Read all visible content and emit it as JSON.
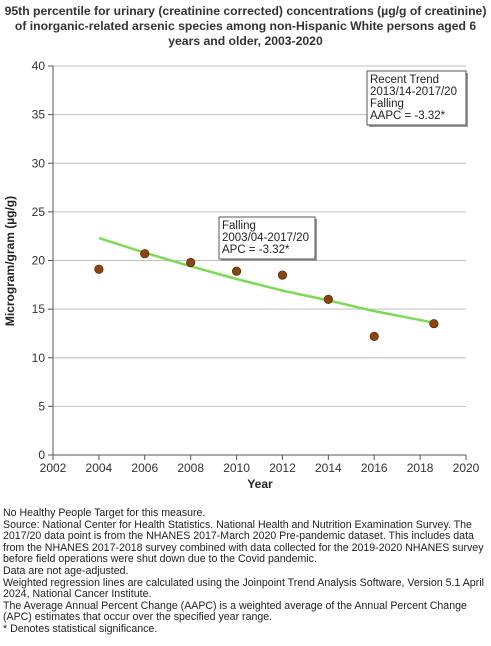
{
  "title_lines": [
    "95th percentile for urinary (creatinine corrected) concentrations (µg/g of creatinine)",
    "of inorganic-related arsenic species among non-Hispanic White persons aged 6",
    "years and older, 2003-2020"
  ],
  "chart_data": {
    "type": "scatter",
    "title": "95th percentile for urinary (creatinine corrected) concentrations (µg/g of creatinine) of inorganic-related arsenic species among non-Hispanic White persons aged 6 years and older, 2003-2020",
    "xlabel": "Year",
    "ylabel": "Microgram/gram (µg/g)",
    "xlim": [
      2002,
      2020
    ],
    "ylim": [
      0,
      40
    ],
    "xticks": [
      2002,
      2004,
      2006,
      2008,
      2010,
      2012,
      2014,
      2016,
      2018,
      2020
    ],
    "yticks": [
      0,
      5,
      10,
      15,
      20,
      25,
      30,
      35,
      40
    ],
    "grid": "horizontal",
    "points": {
      "x": [
        2004,
        2006,
        2008,
        2010,
        2012,
        2014,
        2016,
        2018.6
      ],
      "y": [
        19.1,
        20.7,
        19.8,
        18.9,
        18.5,
        16.0,
        12.2,
        13.5
      ]
    },
    "trend_line": {
      "x": [
        2004,
        2006,
        2008,
        2010,
        2012,
        2014,
        2016,
        2018.6
      ],
      "y": [
        22.3,
        20.8,
        19.4,
        18.1,
        16.9,
        15.9,
        14.8,
        13.6
      ]
    },
    "annotations": [
      {
        "lines": [
          "Falling",
          "2003/04-2017/20",
          "APC = -3.32*"
        ]
      },
      {
        "lines": [
          "Recent Trend",
          "2013/14-2017/20",
          "Falling",
          "AAPC = -3.32*"
        ]
      }
    ],
    "colors": {
      "point_fill": "#8b4513",
      "trend_line": "#7ed957",
      "grid": "#bfbfbf"
    }
  },
  "notes": [
    "No Healthy People Target for this measure.",
    "Source: National Center for Health Statistics. National Health and Nutrition Examination Survey. The 2017/20 data point is from the NHANES 2017-March 2020 Pre-pandemic dataset. This includes data from the NHANES 2017-2018 survey combined with data collected for the 2019-2020 NHANES survey before field operations were shut down due to the Covid pandemic.",
    "Data are not age-adjusted.",
    "Weighted regression lines are calculated using the Joinpoint Trend Analysis Software, Version 5.1 April 2024, National Cancer Institute.",
    "The Average Annual Percent Change (AAPC) is a weighted average of the Annual Percent Change (APC) estimates that occur over the specified year range.",
    "* Denotes statistical significance."
  ]
}
